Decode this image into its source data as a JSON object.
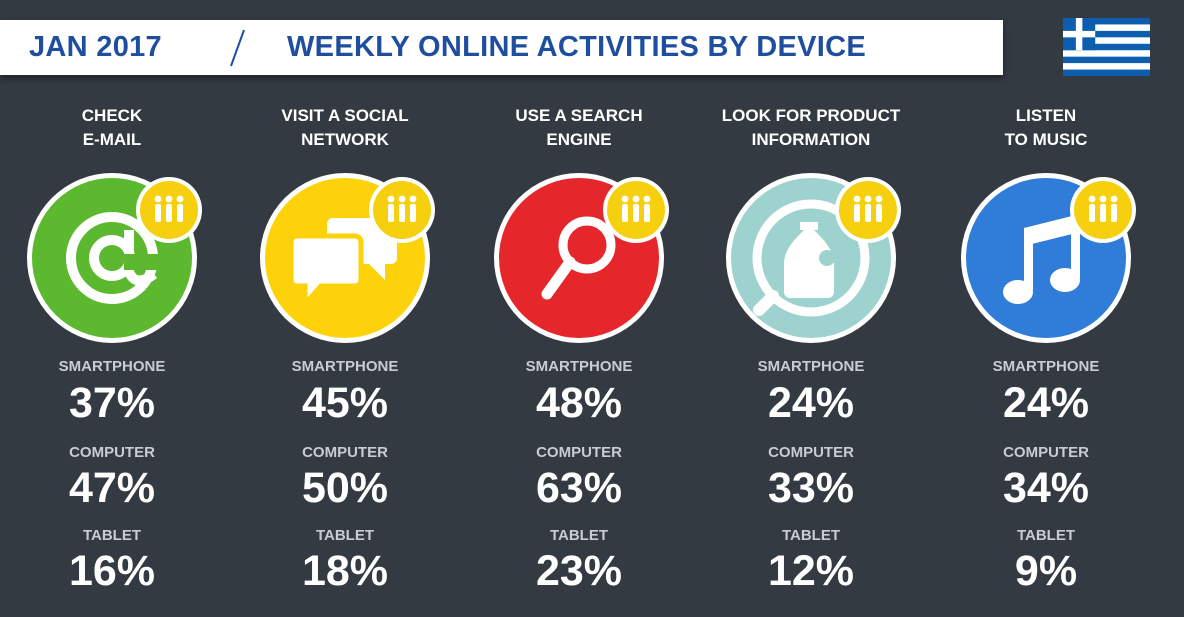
{
  "header": {
    "date": "JAN 2017",
    "title": "WEEKLY ONLINE ACTIVITIES BY DEVICE",
    "flag_icon": "greece-flag-icon"
  },
  "colors": {
    "background": "#343a42",
    "title_blue": "#1f4e9e",
    "email_green": "#5cb82e",
    "social_yellow": "#fdd20a",
    "search_red": "#e5262a",
    "product_teal": "#9ed2cf",
    "music_blue": "#2f7cd9",
    "badge_yellow": "#f6cf0e"
  },
  "chart_data": {
    "type": "table",
    "title": "WEEKLY ONLINE ACTIVITIES BY DEVICE",
    "period": "JAN 2017",
    "device_labels": [
      "SMARTPHONE",
      "COMPUTER",
      "TABLET"
    ],
    "activities": [
      {
        "line1": "CHECK",
        "line2": "E-MAIL",
        "icon": "email-at-icon",
        "smartphone": "37%",
        "computer": "47%",
        "tablet": "16%"
      },
      {
        "line1": "VISIT A SOCIAL",
        "line2": "NETWORK",
        "icon": "speech-bubbles-icon",
        "smartphone": "45%",
        "computer": "50%",
        "tablet": "18%"
      },
      {
        "line1": "USE A SEARCH",
        "line2": "ENGINE",
        "icon": "magnifier-icon",
        "smartphone": "48%",
        "computer": "63%",
        "tablet": "23%"
      },
      {
        "line1": "LOOK FOR PRODUCT",
        "line2": "INFORMATION",
        "icon": "product-bottle-icon",
        "smartphone": "24%",
        "computer": "33%",
        "tablet": "12%"
      },
      {
        "line1": "LISTEN",
        "line2": "TO MUSIC",
        "icon": "music-note-icon",
        "smartphone": "24%",
        "computer": "34%",
        "tablet": "9%"
      }
    ]
  }
}
